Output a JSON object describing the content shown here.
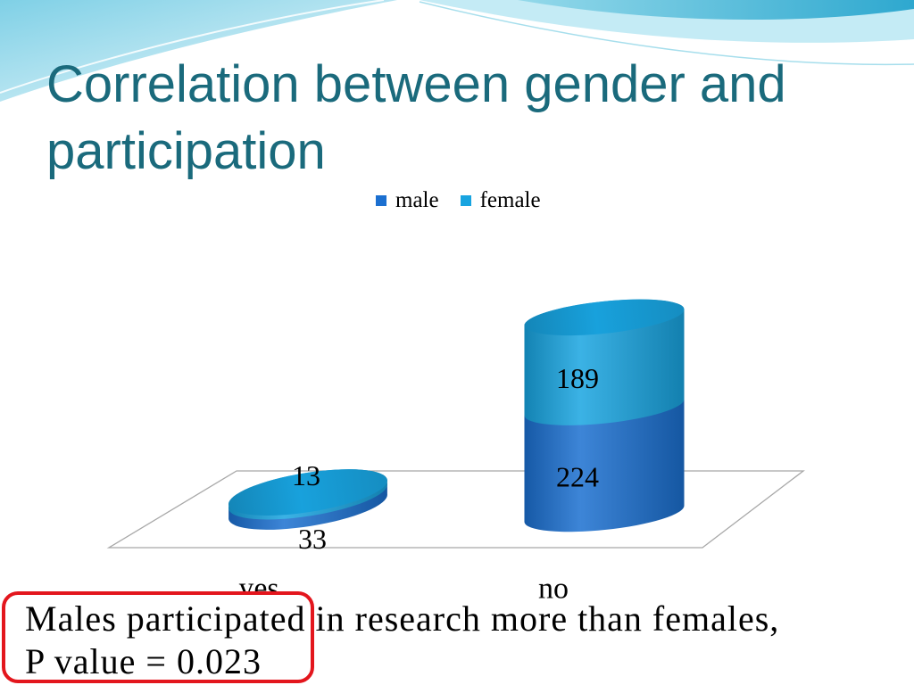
{
  "slide": {
    "title": "Correlation between gender and participation"
  },
  "theme": {
    "title_color": "#1a6a7c",
    "highlight_border_color": "#e3161d"
  },
  "chart_data": {
    "type": "bar",
    "stacked": true,
    "three_d": true,
    "categories": [
      "yes",
      "no"
    ],
    "series": [
      {
        "name": "male",
        "values": [
          33,
          224
        ],
        "color": "#1b6fd0"
      },
      {
        "name": "female",
        "values": [
          13,
          189
        ],
        "color": "#18a4e0"
      }
    ],
    "data_labels": true,
    "legend": "top",
    "grid": false
  },
  "conclusion": {
    "line1": "Males participated in research more than females,",
    "line2": "P value = 0.023"
  }
}
